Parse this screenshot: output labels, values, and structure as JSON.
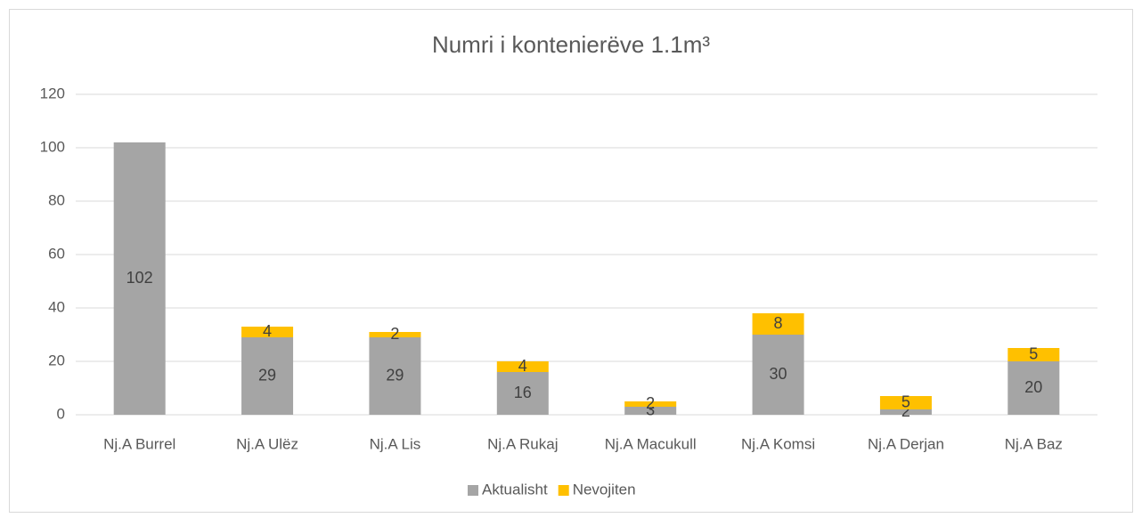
{
  "chart_data": {
    "type": "stacked_bar",
    "title": "Numri i kontenierëve 1.1m³",
    "categories": [
      "Nj.A Burrel",
      "Nj.A Ulëz",
      "Nj.A Lis",
      "Nj.A Rukaj",
      "Nj.A Macukull",
      "Nj.A Komsi",
      "Nj.A Derjan",
      "Nj.A Baz"
    ],
    "series": [
      {
        "name": "Aktualisht",
        "color": "#a5a5a5",
        "values": [
          102,
          29,
          29,
          16,
          3,
          30,
          2,
          20
        ]
      },
      {
        "name": "Nevojiten",
        "color": "#ffc000",
        "values": [
          null,
          4,
          2,
          4,
          2,
          8,
          5,
          5
        ]
      }
    ],
    "ylim": [
      0,
      120
    ],
    "yticks": [
      0,
      20,
      40,
      60,
      80,
      100,
      120
    ],
    "grid": true,
    "legend": "bottom"
  }
}
